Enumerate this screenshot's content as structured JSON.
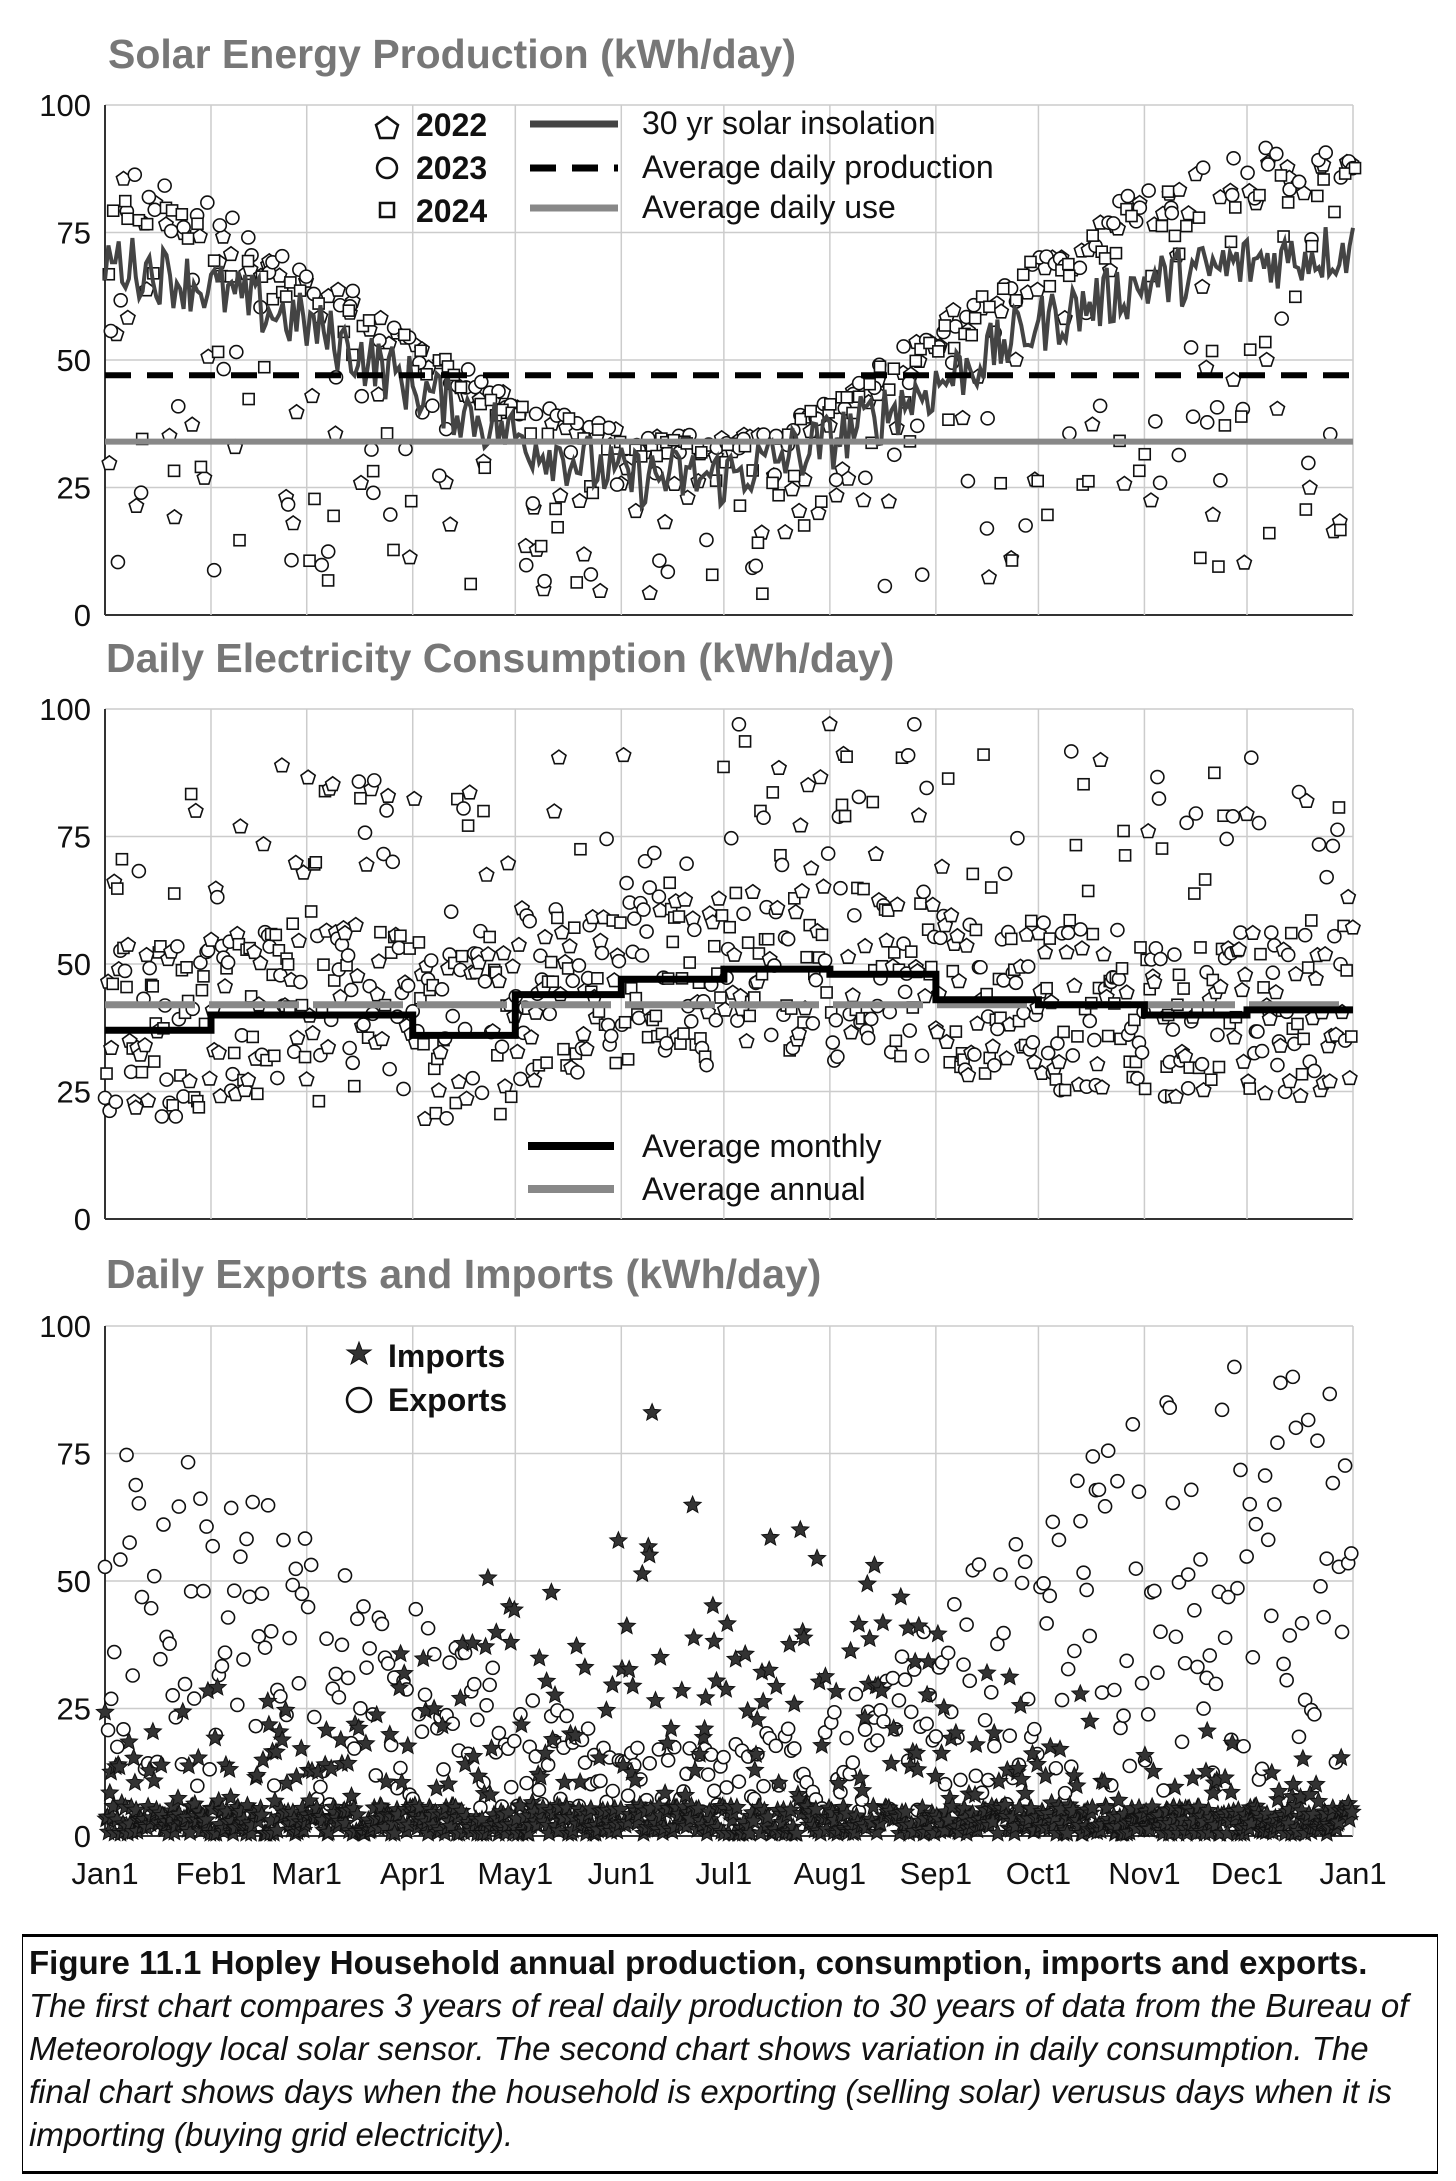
{
  "chart_data": [
    {
      "type": "scatter",
      "title": "Solar Energy Production (kWh/day)",
      "ylim": [
        0,
        100
      ],
      "yticks": [
        "0",
        "25",
        "50",
        "75",
        "100"
      ],
      "x_axis_months": [
        "Jan1",
        "Feb1",
        "Mar1",
        "Apr1",
        "May1",
        "Jun1",
        "Jul1",
        "Aug1",
        "Sep1",
        "Oct1",
        "Nov1",
        "Dec1",
        "Jan1"
      ],
      "grid": true,
      "legend_position": "top-center",
      "legend": [
        "2022",
        "2023",
        "2024",
        "30 yr solar insolation",
        "Average daily production",
        "Average daily use"
      ],
      "series": [
        {
          "name": "30 yr solar insolation",
          "style": "line",
          "color": "#444444",
          "x": [
            "Jan1",
            "Feb1",
            "Mar1",
            "Apr1",
            "May1",
            "Jun1",
            "Jul1",
            "Aug1",
            "Sep1",
            "Oct1",
            "Nov1",
            "Dec1",
            "Jan1"
          ],
          "values": [
            70,
            64,
            57,
            45,
            35,
            27,
            27,
            34,
            45,
            57,
            65,
            69,
            72
          ]
        },
        {
          "name": "Average daily production",
          "style": "dashed",
          "color": "#000000",
          "value": 47
        },
        {
          "name": "Average daily use",
          "style": "solid",
          "color": "#888888",
          "value": 34
        },
        {
          "name": "2022",
          "marker": "pentagon",
          "approx_envelope_max": [
            88,
            78,
            68,
            55,
            42,
            36,
            35,
            42,
            58,
            72,
            84,
            90,
            90
          ]
        },
        {
          "name": "2023",
          "marker": "circle",
          "approx_envelope_max": [
            90,
            80,
            70,
            56,
            43,
            37,
            35,
            43,
            58,
            73,
            85,
            92,
            92
          ]
        },
        {
          "name": "2024",
          "marker": "square",
          "approx_envelope_max": [
            86,
            76,
            66,
            54,
            42,
            35,
            34,
            42,
            57,
            71,
            83,
            88,
            88
          ]
        }
      ]
    },
    {
      "type": "scatter",
      "title": "Daily Electricity Consumption (kWh/day)",
      "ylim": [
        0,
        100
      ],
      "yticks": [
        "0",
        "25",
        "50",
        "75",
        "100"
      ],
      "grid": true,
      "legend_position": "bottom-center",
      "legend": [
        "Average monthly",
        "Average annual"
      ],
      "series": [
        {
          "name": "Average monthly",
          "style": "step",
          "color": "#000000",
          "months": [
            "Jan",
            "Feb",
            "Mar",
            "Apr",
            "May",
            "Jun",
            "Jul",
            "Aug",
            "Sep",
            "Oct",
            "Nov",
            "Dec"
          ],
          "values": [
            37,
            40,
            40,
            36,
            44,
            47,
            49,
            48,
            43,
            42,
            40,
            41
          ]
        },
        {
          "name": "Average annual",
          "style": "dashed",
          "color": "#888888",
          "value": 42
        },
        {
          "name": "daily consumption",
          "marker": "mixed",
          "approx_range": [
            10,
            97
          ]
        }
      ]
    },
    {
      "type": "scatter",
      "title": "Daily Exports and Imports (kWh/day)",
      "ylim": [
        0,
        100
      ],
      "yticks": [
        "0",
        "25",
        "50",
        "75",
        "100"
      ],
      "grid": true,
      "legend_position": "top-left",
      "legend": [
        "Imports",
        "Exports"
      ],
      "series": [
        {
          "name": "Imports",
          "marker": "star",
          "color": "#333333",
          "approx_peak": 83,
          "approx_seasonal_max": [
            25,
            30,
            35,
            40,
            55,
            60,
            70,
            70,
            40,
            30,
            25,
            20,
            20
          ]
        },
        {
          "name": "Exports",
          "marker": "circle",
          "color": "#000000",
          "approx_seasonal_max": [
            80,
            75,
            60,
            45,
            30,
            20,
            18,
            25,
            45,
            65,
            85,
            95,
            92
          ]
        }
      ]
    }
  ],
  "caption": {
    "heading": "Figure 11.1 Hopley Household annual production, consumption, imports and exports.",
    "body": "The first chart compares 3 years of real daily production to 30 years of data from the Bureau of Meteorology local solar sensor. The second chart shows variation in daily consumption. The final chart shows days when the household is exporting (selling solar) verusus days when it is importing (buying grid electricity)."
  }
}
